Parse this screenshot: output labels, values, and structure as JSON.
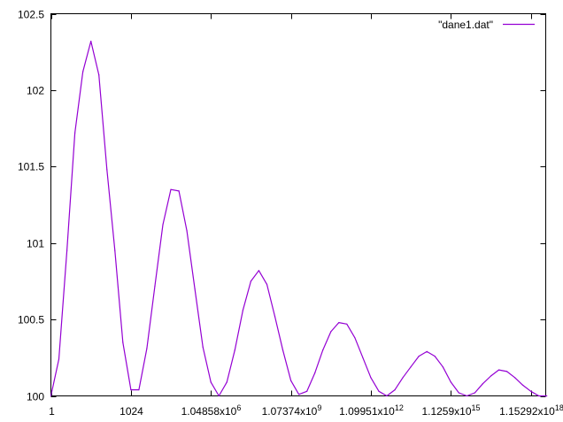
{
  "chart_data": {
    "type": "line",
    "title": "",
    "xlabel": "",
    "ylabel": "",
    "x_scale": "log2",
    "xlim": [
      1,
      4194304000000000000
    ],
    "ylim": [
      100,
      102.5
    ],
    "grid": false,
    "legend_position": "top-right",
    "x_ticks": [
      {
        "value": 1,
        "label": "1"
      },
      {
        "value": 1024,
        "label": "1024"
      },
      {
        "value": 1048576,
        "label": "1.04858x10^6"
      },
      {
        "value": 1073741824,
        "label": "1.07374x10^9"
      },
      {
        "value": 1099511627776,
        "label": "1.09951x10^12"
      },
      {
        "value": 1125899906842624,
        "label": "1.1259x10^15"
      },
      {
        "value": 1152921504606846976,
        "label": "1.15292x10^18"
      }
    ],
    "y_ticks": [
      {
        "value": 100,
        "label": "100"
      },
      {
        "value": 100.5,
        "label": "100.5"
      },
      {
        "value": 101,
        "label": "101"
      },
      {
        "value": 101.5,
        "label": "101.5"
      },
      {
        "value": 102,
        "label": "102"
      },
      {
        "value": 102.5,
        "label": "102.5"
      }
    ],
    "series": [
      {
        "name": "\"dane1.dat\"",
        "color": "#9400d3",
        "x": [
          1,
          2,
          4,
          8,
          16,
          32,
          64,
          128,
          256,
          512,
          1024,
          2048,
          4096,
          8192,
          16384,
          32768,
          65536,
          131072,
          262144,
          524288,
          1048576,
          2097152,
          4194304,
          8388608,
          16777216,
          33554432,
          67108864,
          134217728,
          268435456,
          536870912,
          1073741824,
          2147483648,
          4294967296,
          8589934592,
          17179869184,
          34359738368,
          68719476736,
          137438953472,
          274877906944,
          549755813888,
          1099511627776,
          2199023255552,
          4398046511104,
          8796093022208,
          17592186044416,
          35184372088832,
          70368744177664,
          140737488355328,
          281474976710656,
          562949953421312,
          1125899906842624,
          2251799813685248,
          4503599627370496,
          9007199254740992,
          18014398509481984,
          36028797018963970,
          72057594037927940,
          144115188075855870,
          288230376151711740,
          576460752303423500,
          1152921504606846976,
          2305843009213694000,
          4611686018427388000
        ],
        "y": [
          100.0,
          100.24,
          100.95,
          101.72,
          102.12,
          102.32,
          102.1,
          101.48,
          100.95,
          100.35,
          100.04,
          100.04,
          100.31,
          100.72,
          101.12,
          101.35,
          101.34,
          101.08,
          100.7,
          100.32,
          100.09,
          100.0,
          100.09,
          100.3,
          100.56,
          100.75,
          100.82,
          100.73,
          100.52,
          100.3,
          100.1,
          100.01,
          100.03,
          100.15,
          100.3,
          100.42,
          100.48,
          100.47,
          100.38,
          100.25,
          100.12,
          100.03,
          100.0,
          100.04,
          100.12,
          100.19,
          100.26,
          100.29,
          100.26,
          100.19,
          100.09,
          100.02,
          100.0,
          100.02,
          100.08,
          100.13,
          100.17,
          100.16,
          100.12,
          100.07,
          100.03,
          100.0,
          100.0
        ]
      }
    ]
  }
}
